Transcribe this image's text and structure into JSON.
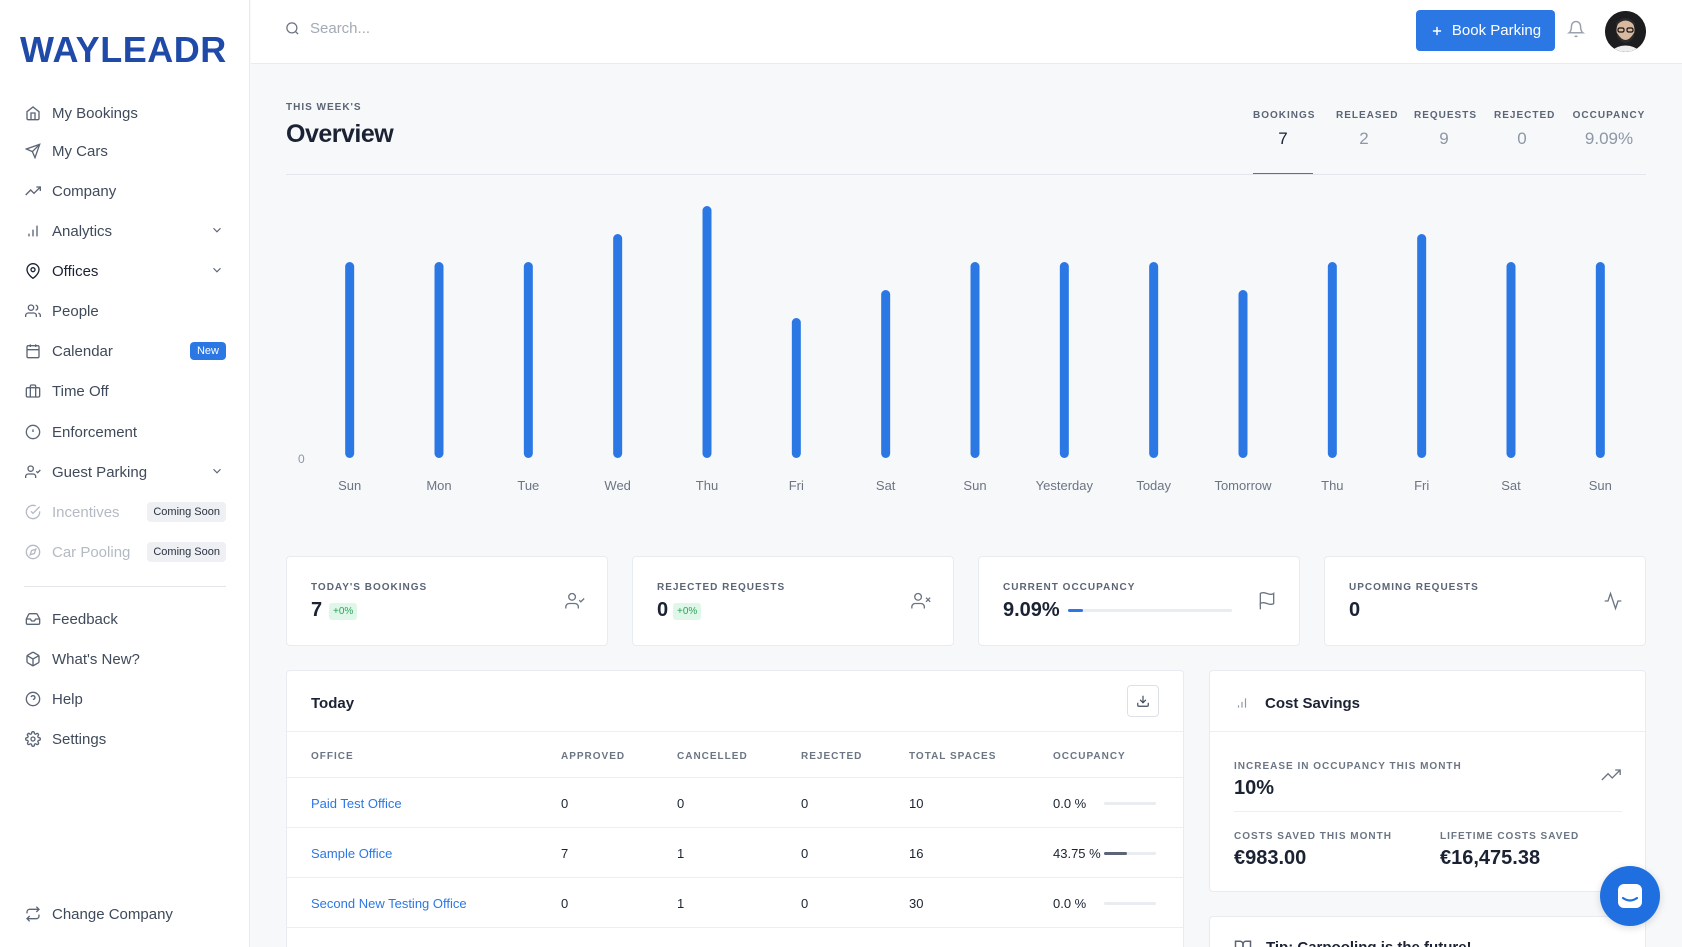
{
  "brand": {
    "logo_text": "WAYLEADR",
    "accent": "#2b78e4"
  },
  "sidebar": {
    "items": [
      {
        "label": "My Bookings",
        "icon": "home-icon"
      },
      {
        "label": "My Cars",
        "icon": "navigation-icon"
      },
      {
        "label": "Company",
        "icon": "trending-up-icon"
      },
      {
        "label": "Analytics",
        "icon": "bar-chart-icon"
      },
      {
        "label": "Offices",
        "icon": "map-pin-icon"
      },
      {
        "label": "People",
        "icon": "users-icon"
      },
      {
        "label": "Calendar",
        "icon": "calendar-icon",
        "badge": "New"
      },
      {
        "label": "Time Off",
        "icon": "briefcase-icon"
      },
      {
        "label": "Enforcement",
        "icon": "alert-circle-icon"
      },
      {
        "label": "Guest Parking",
        "icon": "user-check-icon"
      },
      {
        "label": "Incentives",
        "icon": "check-circle-icon",
        "badge": "Coming Soon"
      },
      {
        "label": "Car Pooling",
        "icon": "compass-icon",
        "badge": "Coming Soon"
      },
      {
        "label": "Feedback",
        "icon": "inbox-icon"
      },
      {
        "label": "What's New?",
        "icon": "package-icon"
      },
      {
        "label": "Help",
        "icon": "help-circle-icon"
      },
      {
        "label": "Settings",
        "icon": "settings-icon"
      },
      {
        "label": "Change Company",
        "icon": "repeat-icon"
      }
    ]
  },
  "topbar": {
    "search_placeholder": "Search...",
    "book_button": "Book Parking"
  },
  "overview": {
    "kicker": "THIS WEEK'S",
    "title": "Overview",
    "tabs": [
      {
        "label": "BOOKINGS",
        "value": "7"
      },
      {
        "label": "RELEASED",
        "value": "2"
      },
      {
        "label": "REQUESTS",
        "value": "9"
      },
      {
        "label": "REJECTED",
        "value": "0"
      },
      {
        "label": "OCCUPANCY",
        "value": "9.09%"
      }
    ],
    "active_tab": "BOOKINGS"
  },
  "chart_data": {
    "type": "bar",
    "categories": [
      "Sun",
      "Mon",
      "Tue",
      "Wed",
      "Thu",
      "Fri",
      "Sat",
      "Sun",
      "Yesterday",
      "Today",
      "Tomorrow",
      "Thu",
      "Fri",
      "Sat",
      "Sun"
    ],
    "values": [
      7,
      7,
      7,
      8,
      9,
      5,
      6,
      7,
      7,
      7,
      6,
      7,
      8,
      7,
      7
    ],
    "y_tick_labels": [
      "0"
    ],
    "ylim": [
      0,
      9
    ],
    "bar_color": "#2b78e4",
    "grid": false,
    "legend": "none",
    "title": "",
    "xlabel": "",
    "ylabel": ""
  },
  "stat_cards": [
    {
      "title": "TODAY'S BOOKINGS",
      "value": "7",
      "change": "+0%",
      "icon": "user-check-icon"
    },
    {
      "title": "REJECTED REQUESTS",
      "value": "0",
      "change": "+0%",
      "icon": "user-x-icon"
    },
    {
      "title": "CURRENT OCCUPANCY",
      "value": "9.09%",
      "progress": 0.0909,
      "icon": "flag-icon"
    },
    {
      "title": "UPCOMING REQUESTS",
      "value": "0",
      "icon": "activity-icon"
    }
  ],
  "today": {
    "title": "Today",
    "columns": [
      "OFFICE",
      "APPROVED",
      "CANCELLED",
      "REJECTED",
      "TOTAL SPACES",
      "OCCUPANCY"
    ],
    "rows": [
      {
        "office": "Paid Test Office",
        "approved": "0",
        "cancelled": "0",
        "rejected": "0",
        "total": "10",
        "occupancy": "0.0 %",
        "occ": 0.0
      },
      {
        "office": "Sample Office",
        "approved": "7",
        "cancelled": "1",
        "rejected": "0",
        "total": "16",
        "occupancy": "43.75 %",
        "occ": 0.4375
      },
      {
        "office": "Second New Testing Office",
        "approved": "0",
        "cancelled": "1",
        "rejected": "0",
        "total": "30",
        "occupancy": "0.0 %",
        "occ": 0.0
      }
    ]
  },
  "cost_savings": {
    "title": "Cost Savings",
    "increase_label": "INCREASE IN OCCUPANCY THIS MONTH",
    "increase_value": "10%",
    "month_label": "COSTS SAVED THIS MONTH",
    "month_value": "€983.00",
    "lifetime_label": "LIFETIME COSTS SAVED",
    "lifetime_value": "€16,475.38"
  },
  "tip": {
    "title": "Tip: Carpooling is the future!"
  }
}
